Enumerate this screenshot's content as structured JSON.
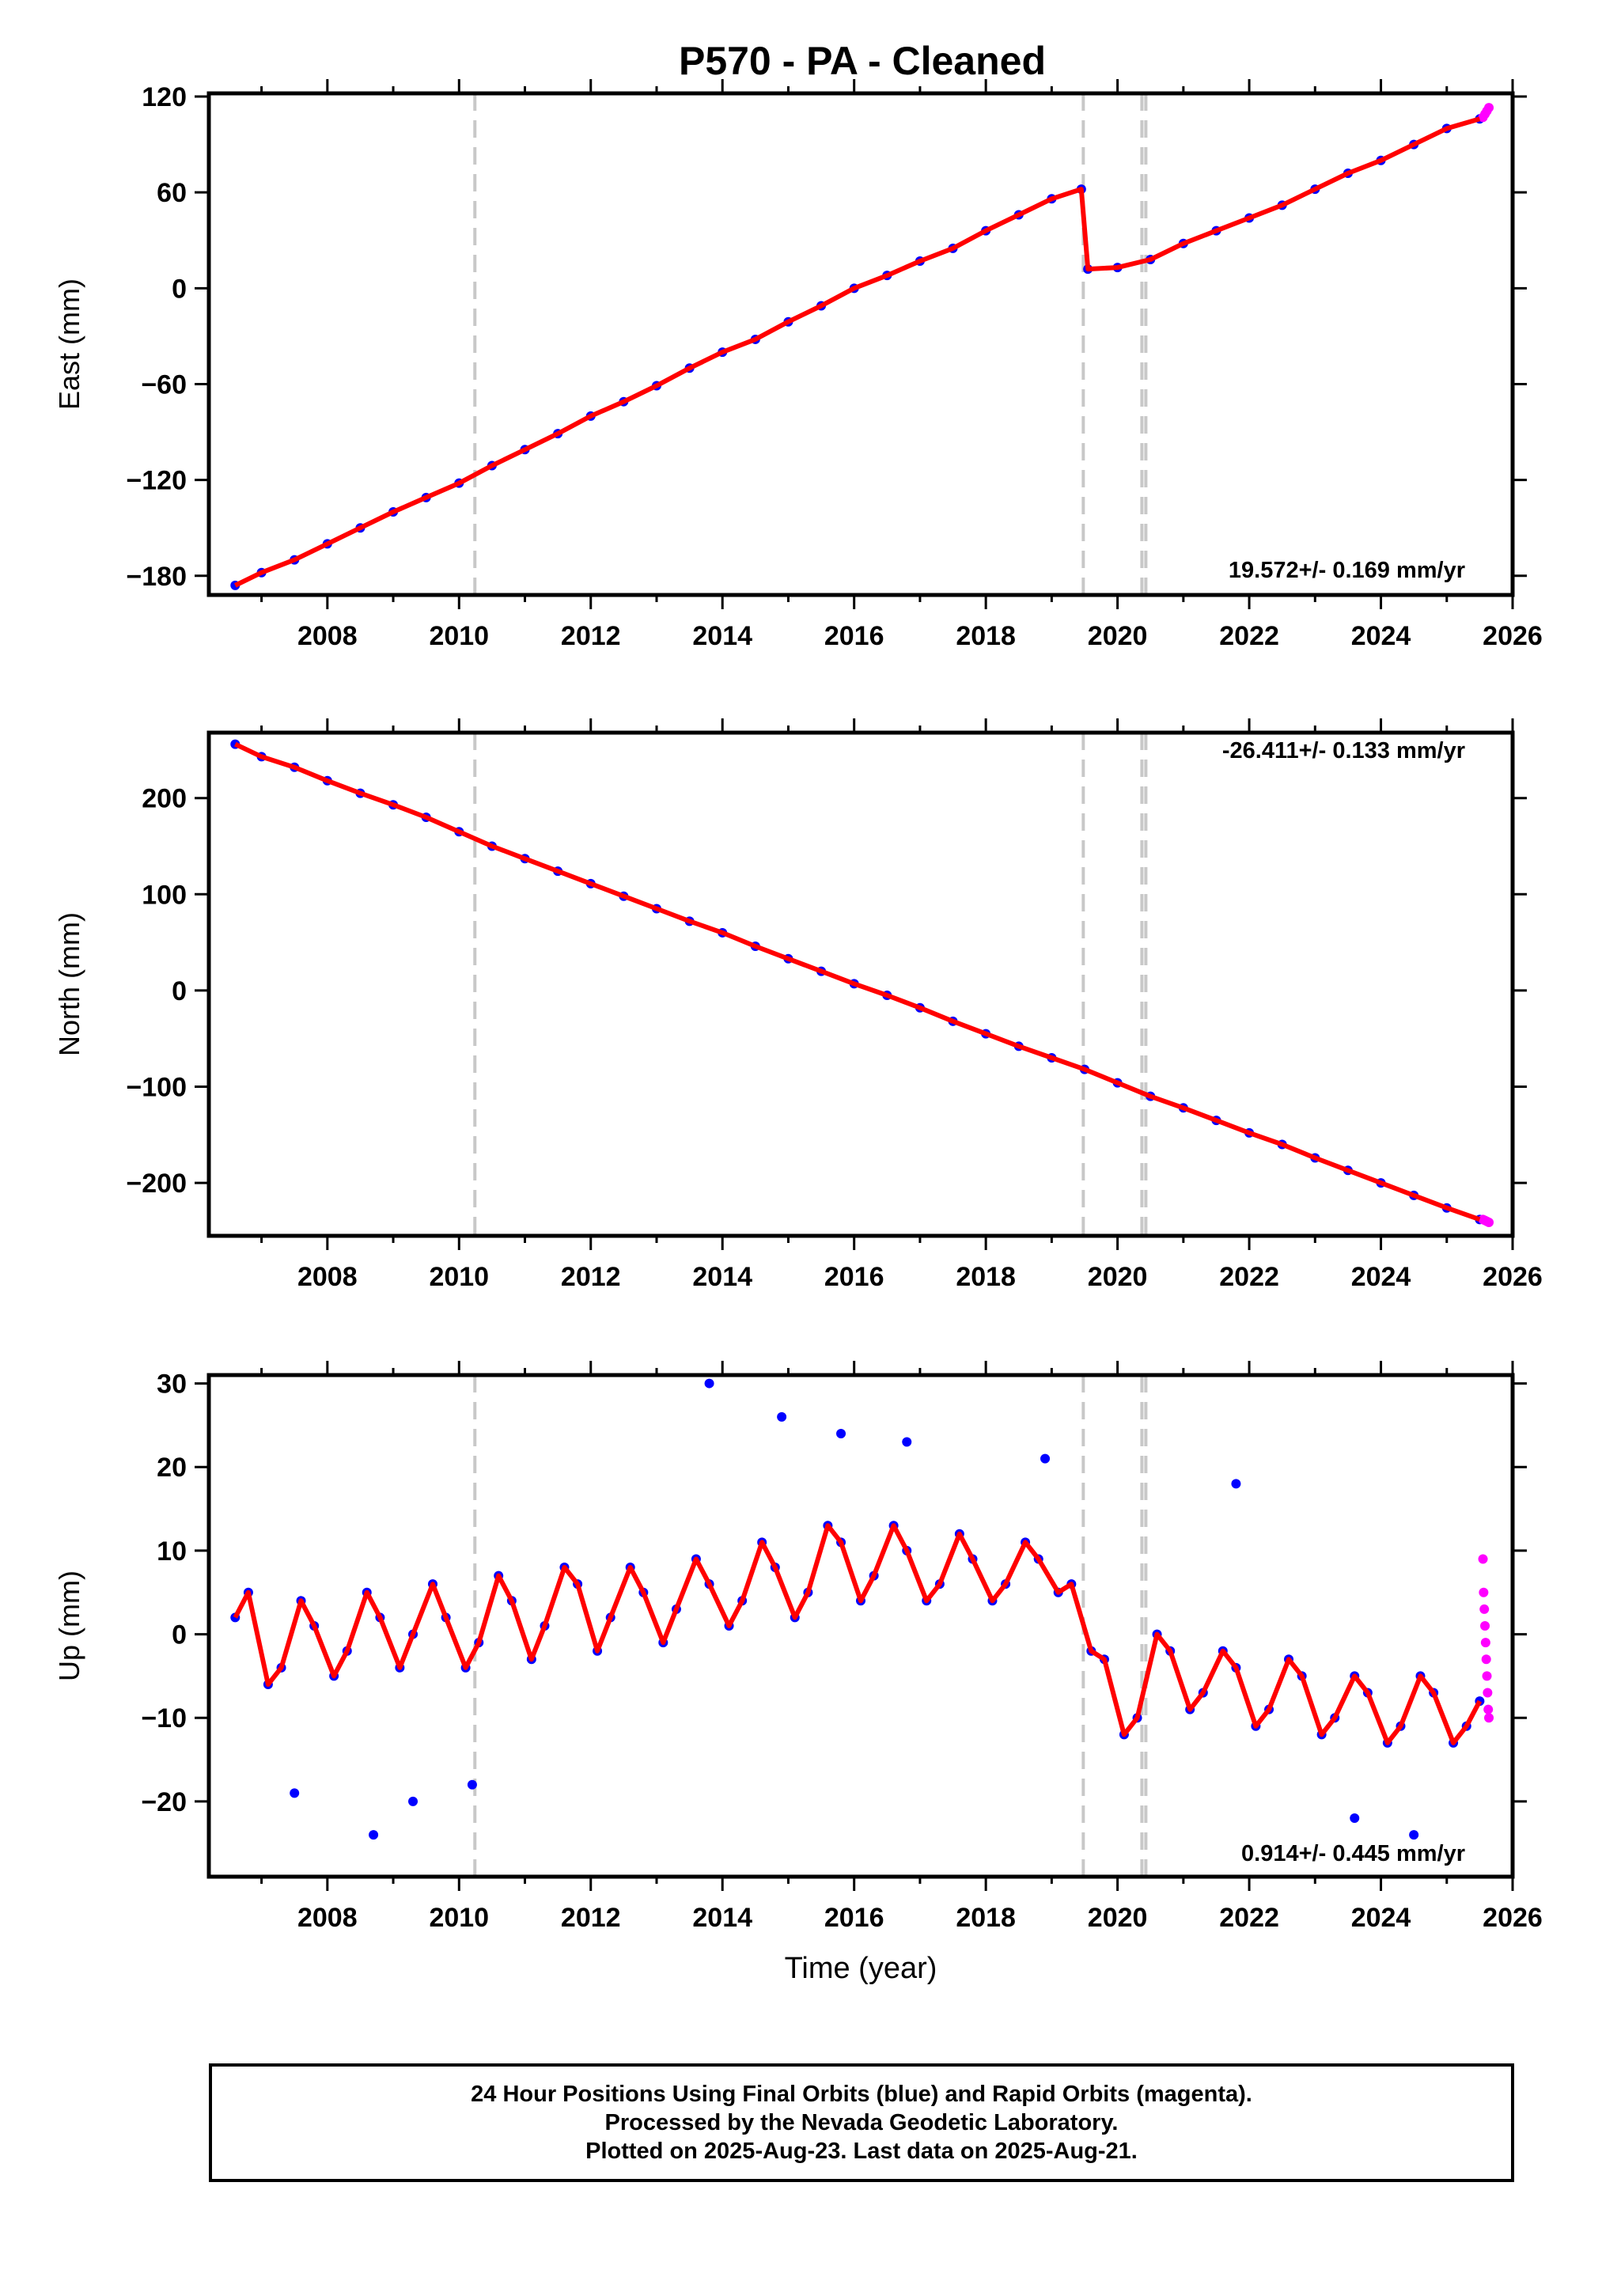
{
  "title": "P570  - PA - Cleaned",
  "colors": {
    "final_orbits": "#0000ff",
    "rapid_orbits": "#ff00ff",
    "model": "#ff0000",
    "event_line": "#c8c8c8"
  },
  "chart_data": [
    {
      "type": "scatter",
      "component": "East",
      "ylabel": "East (mm)",
      "xlabel": "",
      "xlim": [
        2006.2,
        2026.0
      ],
      "ylim": [
        -192,
        122
      ],
      "xticks": [
        2008,
        2010,
        2012,
        2014,
        2016,
        2018,
        2020,
        2022,
        2024,
        2026
      ],
      "yticks": [
        -180,
        -120,
        -60,
        0,
        60,
        120
      ],
      "rate_label": "19.572+/- 0.169 mm/yr",
      "event_lines": [
        2010.24,
        2019.48,
        2020.37,
        2020.43
      ],
      "series": [
        {
          "name": "Final Orbits",
          "color": "#0000ff",
          "x": [
            2006.6,
            2007.0,
            2007.5,
            2008.0,
            2008.5,
            2009.0,
            2009.5,
            2010.0,
            2010.5,
            2011.0,
            2011.5,
            2012.0,
            2012.5,
            2013.0,
            2013.5,
            2014.0,
            2014.5,
            2015.0,
            2015.5,
            2016.0,
            2016.5,
            2017.0,
            2017.5,
            2018.0,
            2018.5,
            2019.0,
            2019.45,
            2019.55,
            2020.0,
            2020.5,
            2021.0,
            2021.5,
            2022.0,
            2022.5,
            2023.0,
            2023.5,
            2024.0,
            2024.5,
            2025.0,
            2025.5
          ],
          "y": [
            -186,
            -178,
            -170,
            -160,
            -150,
            -140,
            -131,
            -122,
            -111,
            -101,
            -91,
            -80,
            -71,
            -61,
            -50,
            -40,
            -32,
            -21,
            -11,
            0,
            8,
            17,
            25,
            36,
            46,
            56,
            62,
            12,
            13,
            18,
            28,
            36,
            44,
            52,
            62,
            72,
            80,
            90,
            100,
            106
          ]
        },
        {
          "name": "Rapid Orbits",
          "color": "#ff00ff",
          "x": [
            2025.55,
            2025.58,
            2025.61,
            2025.64
          ],
          "y": [
            107,
            109,
            111,
            113
          ]
        }
      ]
    },
    {
      "type": "scatter",
      "component": "North",
      "ylabel": "North (mm)",
      "xlabel": "",
      "xlim": [
        2006.2,
        2026.0
      ],
      "ylim": [
        -255,
        268
      ],
      "xticks": [
        2008,
        2010,
        2012,
        2014,
        2016,
        2018,
        2020,
        2022,
        2024,
        2026
      ],
      "yticks": [
        -200,
        -100,
        0,
        100,
        200
      ],
      "rate_label": "-26.411+/- 0.133 mm/yr",
      "event_lines": [
        2010.24,
        2019.48,
        2020.37,
        2020.43
      ],
      "series": [
        {
          "name": "Final Orbits",
          "color": "#0000ff",
          "x": [
            2006.6,
            2007.0,
            2007.5,
            2008.0,
            2008.5,
            2009.0,
            2009.5,
            2010.0,
            2010.5,
            2011.0,
            2011.5,
            2012.0,
            2012.5,
            2013.0,
            2013.5,
            2014.0,
            2014.5,
            2015.0,
            2015.5,
            2016.0,
            2016.5,
            2017.0,
            2017.5,
            2018.0,
            2018.5,
            2019.0,
            2019.5,
            2020.0,
            2020.5,
            2021.0,
            2021.5,
            2022.0,
            2022.5,
            2023.0,
            2023.5,
            2024.0,
            2024.5,
            2025.0,
            2025.5
          ],
          "y": [
            256,
            243,
            232,
            218,
            205,
            193,
            180,
            165,
            150,
            137,
            124,
            111,
            98,
            85,
            72,
            60,
            46,
            33,
            20,
            7,
            -5,
            -18,
            -32,
            -45,
            -58,
            -70,
            -82,
            -96,
            -110,
            -122,
            -135,
            -148,
            -160,
            -174,
            -187,
            -200,
            -213,
            -226,
            -238
          ]
        },
        {
          "name": "Rapid Orbits",
          "color": "#ff00ff",
          "x": [
            2025.55,
            2025.58,
            2025.61,
            2025.64
          ],
          "y": [
            -238,
            -239,
            -240,
            -241
          ]
        }
      ]
    },
    {
      "type": "scatter",
      "component": "Up",
      "ylabel": "Up (mm)",
      "xlabel": "Time (year)",
      "xlim": [
        2006.2,
        2026.0
      ],
      "ylim": [
        -29,
        31
      ],
      "xticks": [
        2008,
        2010,
        2012,
        2014,
        2016,
        2018,
        2020,
        2022,
        2024,
        2026
      ],
      "yticks": [
        -20,
        -10,
        0,
        10,
        20,
        30
      ],
      "rate_label": "0.914+/- 0.445 mm/yr",
      "event_lines": [
        2010.24,
        2019.48,
        2020.37,
        2020.43
      ],
      "series": [
        {
          "name": "Final Orbits",
          "color": "#0000ff",
          "x": [
            2006.6,
            2006.8,
            2007.1,
            2007.3,
            2007.6,
            2007.8,
            2008.1,
            2008.3,
            2008.6,
            2008.8,
            2009.1,
            2009.3,
            2009.6,
            2009.8,
            2010.1,
            2010.3,
            2010.6,
            2010.8,
            2011.1,
            2011.3,
            2011.6,
            2011.8,
            2012.1,
            2012.3,
            2012.6,
            2012.8,
            2013.1,
            2013.3,
            2013.6,
            2013.8,
            2014.1,
            2014.3,
            2014.6,
            2014.8,
            2015.1,
            2015.3,
            2015.6,
            2015.8,
            2016.1,
            2016.3,
            2016.6,
            2016.8,
            2017.1,
            2017.3,
            2017.6,
            2017.8,
            2018.1,
            2018.3,
            2018.6,
            2018.8,
            2019.1,
            2019.3,
            2019.6,
            2019.8,
            2020.1,
            2020.3,
            2020.6,
            2020.8,
            2021.1,
            2021.3,
            2021.6,
            2021.8,
            2022.1,
            2022.3,
            2022.6,
            2022.8,
            2023.1,
            2023.3,
            2023.6,
            2023.8,
            2024.1,
            2024.3,
            2024.6,
            2024.8,
            2025.1,
            2025.3,
            2025.5,
            2007.5,
            2008.7,
            2009.3,
            2010.2,
            2013.8,
            2014.9,
            2015.8,
            2016.8,
            2018.9,
            2021.8,
            2023.6,
            2024.5
          ],
          "y": [
            2,
            5,
            -6,
            -4,
            4,
            1,
            -5,
            -2,
            5,
            2,
            -4,
            0,
            6,
            2,
            -4,
            -1,
            7,
            4,
            -3,
            1,
            8,
            6,
            -2,
            2,
            8,
            5,
            -1,
            3,
            9,
            6,
            1,
            4,
            11,
            8,
            2,
            5,
            13,
            11,
            4,
            7,
            13,
            10,
            4,
            6,
            12,
            9,
            4,
            6,
            11,
            9,
            5,
            6,
            -2,
            -3,
            -12,
            -10,
            0,
            -2,
            -9,
            -7,
            -2,
            -4,
            -11,
            -9,
            -3,
            -5,
            -12,
            -10,
            -5,
            -7,
            -13,
            -11,
            -5,
            -7,
            -13,
            -11,
            -8,
            -19,
            -24,
            -20,
            -18,
            30,
            26,
            24,
            23,
            21,
            18,
            -22,
            -24
          ]
        },
        {
          "name": "Rapid Orbits",
          "color": "#ff00ff",
          "x": [
            2025.55,
            2025.56,
            2025.57,
            2025.58,
            2025.59,
            2025.6,
            2025.61,
            2025.62,
            2025.63,
            2025.64
          ],
          "y": [
            9,
            5,
            3,
            1,
            -1,
            -3,
            -5,
            -7,
            -9,
            -10
          ]
        }
      ]
    }
  ],
  "footer": {
    "line1": "24 Hour Positions Using Final Orbits (blue) and Rapid Orbits (magenta).",
    "line2": "Processed by the Nevada Geodetic Laboratory.",
    "line3": "Plotted on 2025-Aug-23. Last data on 2025-Aug-21."
  }
}
